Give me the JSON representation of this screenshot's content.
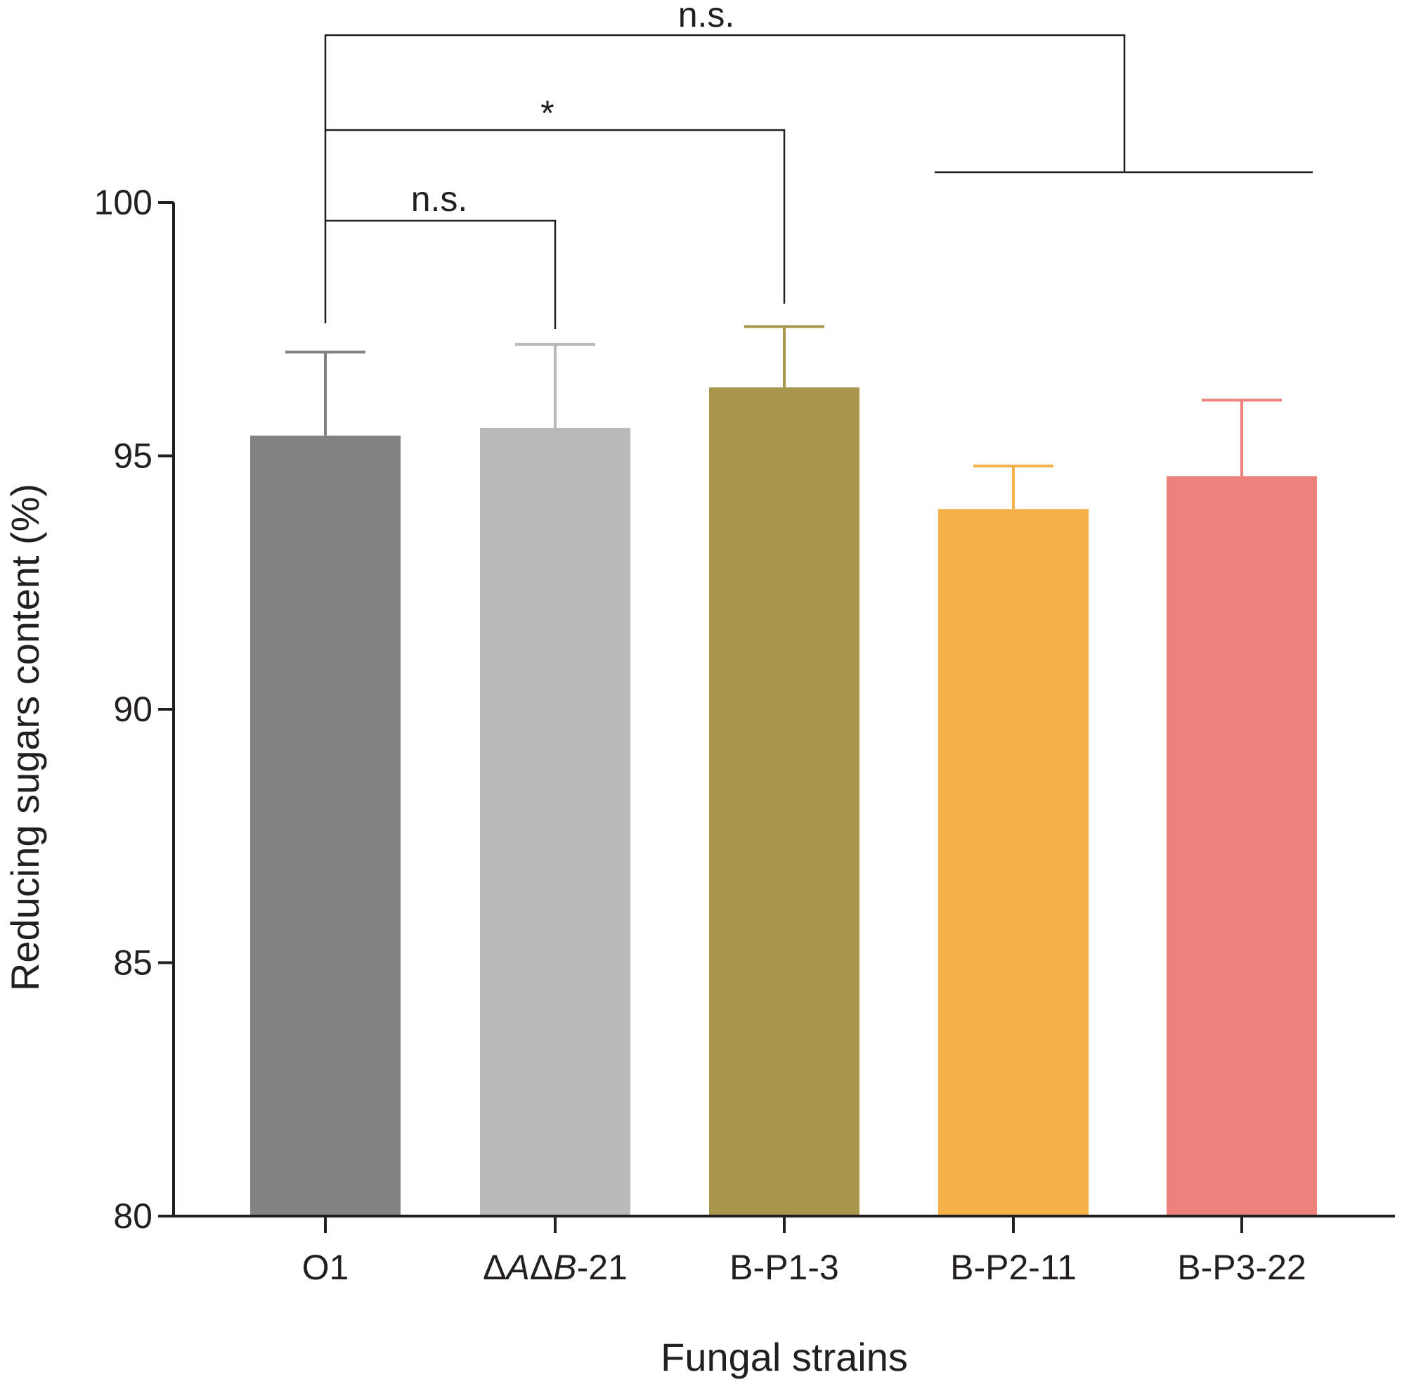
{
  "chart_data": {
    "type": "bar",
    "title": "",
    "xlabel": "Fungal strains",
    "ylabel": "Reducing sugars content (%)",
    "ylim": [
      80,
      100
    ],
    "yticks": [
      80,
      85,
      90,
      95,
      100
    ],
    "grid": false,
    "categories": [
      {
        "prefix": "",
        "italic_parts": [],
        "label": "O1"
      },
      {
        "prefix": "ΔAΔB",
        "italic_parts": [
          "A",
          "B"
        ],
        "label": "ΔAΔB-21"
      },
      {
        "prefix": "",
        "italic_parts": [],
        "label": "B-P1-3"
      },
      {
        "prefix": "",
        "italic_parts": [],
        "label": "B-P2-11"
      },
      {
        "prefix": "",
        "italic_parts": [],
        "label": "B-P3-22"
      }
    ],
    "values": [
      95.4,
      95.55,
      96.35,
      93.95,
      94.6
    ],
    "errors": [
      1.65,
      1.65,
      1.2,
      0.85,
      1.5
    ],
    "colors": [
      "#828282",
      "#b9b9bb",
      "#a8964d",
      "#f5b24a",
      "#ec807a"
    ],
    "significance": [
      {
        "label": "n.s.",
        "from": "O1",
        "to": "ΔAΔB-21"
      },
      {
        "label": "*",
        "from": "O1",
        "to": "B-P1-3"
      },
      {
        "label": "n.s.",
        "from": "O1",
        "to": "B-P2-11 / B-P3-22"
      }
    ]
  }
}
